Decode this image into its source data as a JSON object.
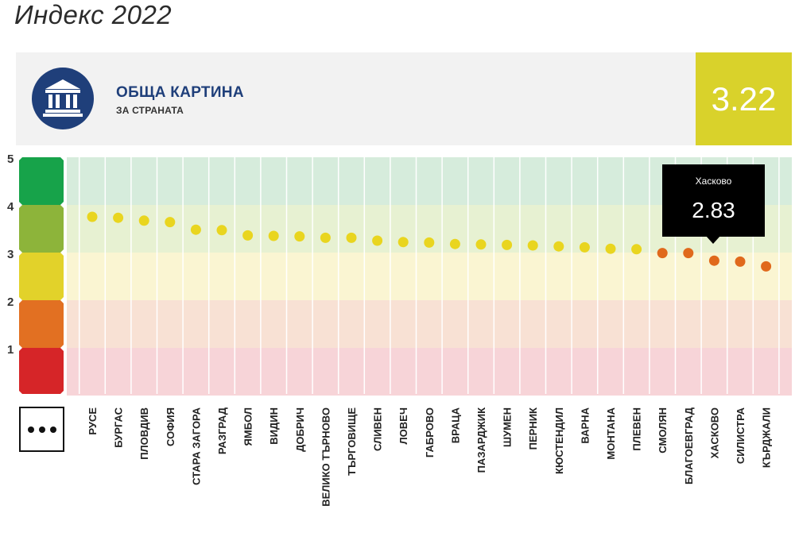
{
  "page": {
    "title": "Индекс 2022"
  },
  "header": {
    "title": "ОБЩА КАРТИНА",
    "subtitle": "ЗА СТРАНАТА",
    "score": "3.22",
    "icon": "institution-building-icon"
  },
  "more_button": {
    "icon": "more-dots-icon"
  },
  "tooltip": {
    "name": "Хасково",
    "value": "2.83"
  },
  "colors": {
    "band_5": "#17a34a",
    "band_4": "#8db43a",
    "band_3": "#e2d22a",
    "band_2": "#e27022",
    "band_1": "#d62528",
    "bg_5": "#d6ecdc",
    "bg_4": "#e7f1d2",
    "bg_3": "#faf5d2",
    "bg_2": "#f8e1d4",
    "bg_1": "#f7d4d8",
    "dot_high": "#e9d51f",
    "dot_low": "#e0691c",
    "accent": "#1f3f7a",
    "score_box": "#d9d22b"
  },
  "chart_data": {
    "type": "scatter",
    "ylim": [
      0,
      5
    ],
    "yticks": [
      "5",
      "4",
      "3",
      "2",
      "1"
    ],
    "categories": [
      "РУСЕ",
      "БУРГАС",
      "ПЛОВДИВ",
      "СОФИЯ",
      "СТАРА ЗАГОРА",
      "РАЗГРАД",
      "ЯМБОЛ",
      "ВИДИН",
      "ДОБРИЧ",
      "ВЕЛИКО ТЪРНОВО",
      "ТЪРГОВИЩЕ",
      "СЛИВЕН",
      "ЛОВЕЧ",
      "ГАБРОВО",
      "ВРАЦА",
      "ПАЗАРДЖИК",
      "ШУМЕН",
      "ПЕРНИК",
      "КЮСТЕНДИЛ",
      "ВАРНА",
      "МОНТАНА",
      "ПЛЕВЕН",
      "СМОЛЯН",
      "БЛАГОЕВГРАД",
      "ХАСКОВО",
      "СИЛИСТРА",
      "КЪРДЖАЛИ"
    ],
    "values": [
      3.75,
      3.73,
      3.67,
      3.64,
      3.48,
      3.47,
      3.36,
      3.35,
      3.34,
      3.31,
      3.31,
      3.25,
      3.22,
      3.21,
      3.18,
      3.17,
      3.16,
      3.15,
      3.13,
      3.11,
      3.08,
      3.07,
      2.99,
      2.99,
      2.83,
      2.81,
      2.71
    ],
    "grid": true
  }
}
